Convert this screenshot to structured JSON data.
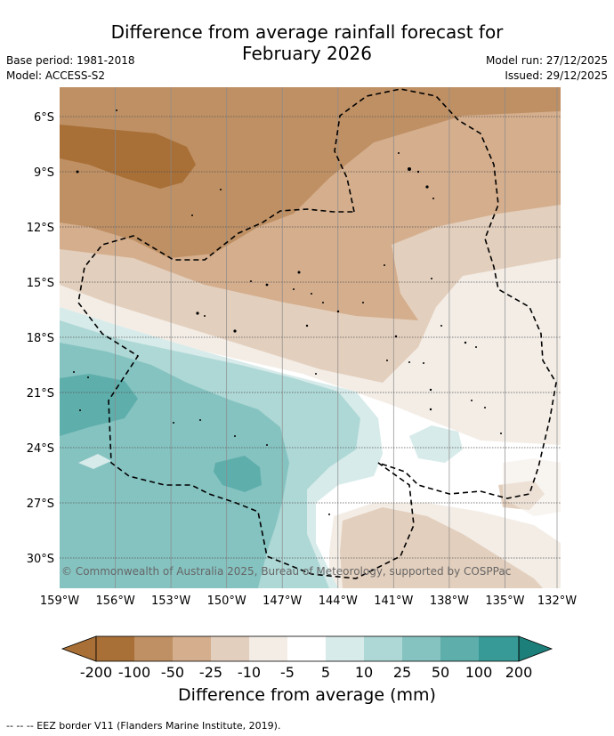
{
  "header": {
    "title_line1": "Difference from average rainfall forecast for",
    "title_line2": "February 2026",
    "base_period": "Base period: 1981-2018",
    "model": "Model: ACCESS-S2",
    "model_run": "Model run: 27/12/2025",
    "issued": "Issued: 29/12/2025"
  },
  "map": {
    "lat_labels": [
      "6°S",
      "9°S",
      "12°S",
      "15°S",
      "18°S",
      "21°S",
      "24°S",
      "27°S",
      "30°S"
    ],
    "lon_labels": [
      "159°W",
      "156°W",
      "153°W",
      "150°W",
      "147°W",
      "144°W",
      "141°W",
      "138°W",
      "135°W",
      "132°W"
    ],
    "copyright": "© Commonwealth of Australia 2025, Bureau of Meteorology, supported by COSPPac"
  },
  "colorbar": {
    "colors": [
      "#a86f36",
      "#bf9064",
      "#d4ae8d",
      "#e3cfbd",
      "#f3ede6",
      "#ffffff",
      "#d7ebea",
      "#aed8d6",
      "#85c3c1",
      "#5eaeab",
      "#379a96",
      "#1d7f7a"
    ],
    "labels": [
      "-200",
      "-100",
      "-50",
      "-25",
      "-10",
      "-5",
      "5",
      "10",
      "25",
      "50",
      "100",
      "200"
    ],
    "title": "Difference from average (mm)"
  },
  "footnote": "-- -- -- EEZ border V11 (Flanders Marine Institute, 2019)."
}
